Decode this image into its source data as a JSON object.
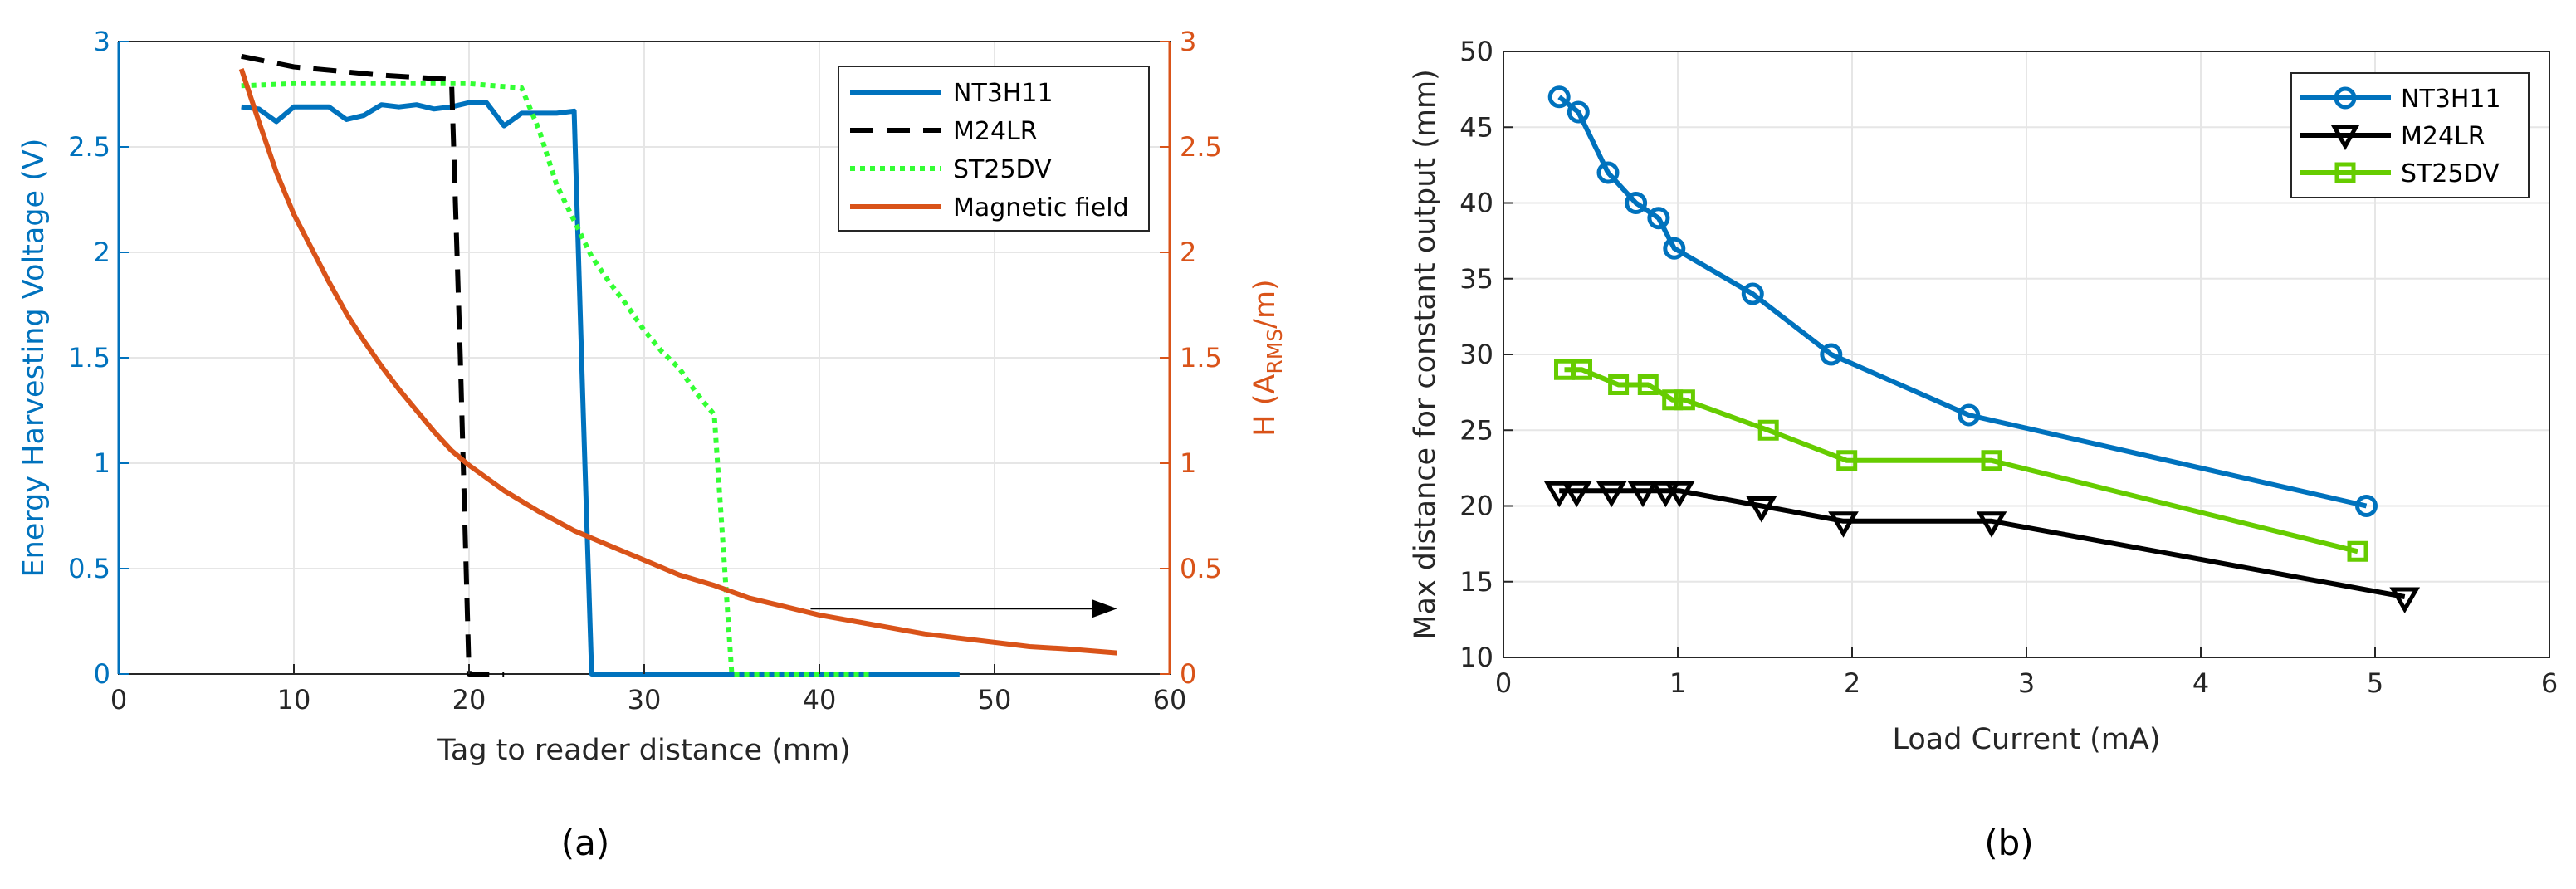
{
  "chart_data": [
    {
      "type": "line",
      "panel_label": "(a)",
      "xlabel": "Tag to reader distance  (mm)",
      "ylabel_left": "Energy Harvesting Voltage (V)",
      "ylabel_right_prefix": "H (A",
      "ylabel_right_sub": "RMS",
      "ylabel_right_suffix": "/m)",
      "xlim": [
        0,
        60
      ],
      "ylim_left": [
        0,
        3
      ],
      "ylim_right": [
        0,
        3
      ],
      "xticks": [
        "0",
        "10",
        "20",
        "30",
        "40",
        "50",
        "60"
      ],
      "yticks_left": [
        "0",
        "0.5",
        "1",
        "1.5",
        "2",
        "2.5",
        "3"
      ],
      "yticks_right": [
        "0",
        "0.5",
        "1",
        "1.5",
        "2",
        "2.5",
        "3"
      ],
      "grid": true,
      "legend_position": "top-right",
      "colors": {
        "left_axis": "#0072BD",
        "right_axis": "#D95319"
      },
      "series": [
        {
          "name": "NT3H11",
          "axis": "left",
          "color": "#0072BD",
          "style": "solid",
          "x": [
            7,
            8,
            9,
            10,
            11,
            12,
            13,
            14,
            15,
            16,
            17,
            18,
            19,
            20,
            21,
            22,
            23,
            24,
            25,
            26,
            26.5,
            27,
            30,
            35,
            40,
            45,
            48
          ],
          "y": [
            2.69,
            2.68,
            2.62,
            2.69,
            2.69,
            2.69,
            2.63,
            2.65,
            2.7,
            2.69,
            2.7,
            2.68,
            2.69,
            2.71,
            2.71,
            2.6,
            2.66,
            2.66,
            2.66,
            2.67,
            1.3,
            0,
            0,
            0,
            0,
            0,
            0
          ]
        },
        {
          "name": "M24LR",
          "axis": "left",
          "color": "#000000",
          "style": "dashed",
          "x": [
            7,
            10,
            15,
            19,
            19.5,
            20,
            21,
            22
          ],
          "y": [
            2.93,
            2.88,
            2.84,
            2.82,
            1.5,
            0,
            0,
            0
          ]
        },
        {
          "name": "ST25DV",
          "axis": "left",
          "color": "#33FF33",
          "style": "dotted",
          "x": [
            7,
            10,
            15,
            20,
            23,
            24,
            25,
            26,
            27,
            28,
            29,
            30,
            31,
            32,
            33,
            34,
            35,
            36,
            38,
            40,
            42,
            43
          ],
          "y": [
            2.79,
            2.8,
            2.8,
            2.8,
            2.78,
            2.58,
            2.32,
            2.15,
            1.98,
            1.86,
            1.75,
            1.63,
            1.53,
            1.45,
            1.33,
            1.23,
            0,
            0,
            0,
            0,
            0,
            0
          ]
        },
        {
          "name": "Magnetic field",
          "axis": "right",
          "color": "#D95319",
          "style": "solid",
          "x": [
            7,
            8,
            9,
            10,
            11,
            12,
            13,
            14,
            15,
            16,
            17,
            18,
            19,
            20,
            22,
            24,
            26,
            28,
            30,
            32,
            34,
            36,
            38,
            40,
            42,
            44,
            46,
            48,
            50,
            52,
            54,
            57
          ],
          "y": [
            2.87,
            2.62,
            2.38,
            2.18,
            2.02,
            1.86,
            1.71,
            1.58,
            1.46,
            1.35,
            1.25,
            1.15,
            1.06,
            0.99,
            0.87,
            0.77,
            0.68,
            0.61,
            0.54,
            0.47,
            0.42,
            0.36,
            0.32,
            0.28,
            0.25,
            0.22,
            0.19,
            0.17,
            0.15,
            0.13,
            0.12,
            0.1
          ]
        }
      ],
      "annotation": {
        "type": "arrow",
        "from": [
          39.5,
          0.31
        ],
        "to": [
          57,
          0.31
        ]
      }
    },
    {
      "type": "line",
      "panel_label": "(b)",
      "xlabel": "Load Current (mA)",
      "ylabel": "Max distance for constant output (mm)",
      "xlim": [
        0,
        6
      ],
      "ylim": [
        10,
        50
      ],
      "xticks": [
        "0",
        "1",
        "2",
        "3",
        "4",
        "5",
        "6"
      ],
      "yticks": [
        "10",
        "15",
        "20",
        "25",
        "30",
        "35",
        "40",
        "45",
        "50"
      ],
      "grid": true,
      "legend_position": "top-right",
      "series": [
        {
          "name": "NT3H11",
          "color": "#0072BD",
          "marker": "circle",
          "x": [
            0.32,
            0.43,
            0.6,
            0.76,
            0.89,
            0.98,
            1.43,
            1.88,
            2.67,
            4.95
          ],
          "y": [
            47,
            46,
            42,
            40,
            39,
            37,
            34,
            30,
            26,
            20
          ]
        },
        {
          "name": "M24LR",
          "color": "#000000",
          "marker": "triangle-down",
          "x": [
            0.32,
            0.42,
            0.62,
            0.8,
            0.93,
            1.01,
            1.48,
            1.95,
            2.8,
            5.17
          ],
          "y": [
            21,
            21,
            21,
            21,
            21,
            21,
            20,
            19,
            19,
            14
          ]
        },
        {
          "name": "ST25DV",
          "color": "#66CC00",
          "marker": "square",
          "x": [
            0.35,
            0.45,
            0.66,
            0.83,
            0.97,
            1.04,
            1.52,
            1.97,
            2.8,
            4.9
          ],
          "y": [
            29,
            29,
            28,
            28,
            27,
            27,
            25,
            23,
            23,
            17
          ]
        }
      ]
    }
  ]
}
